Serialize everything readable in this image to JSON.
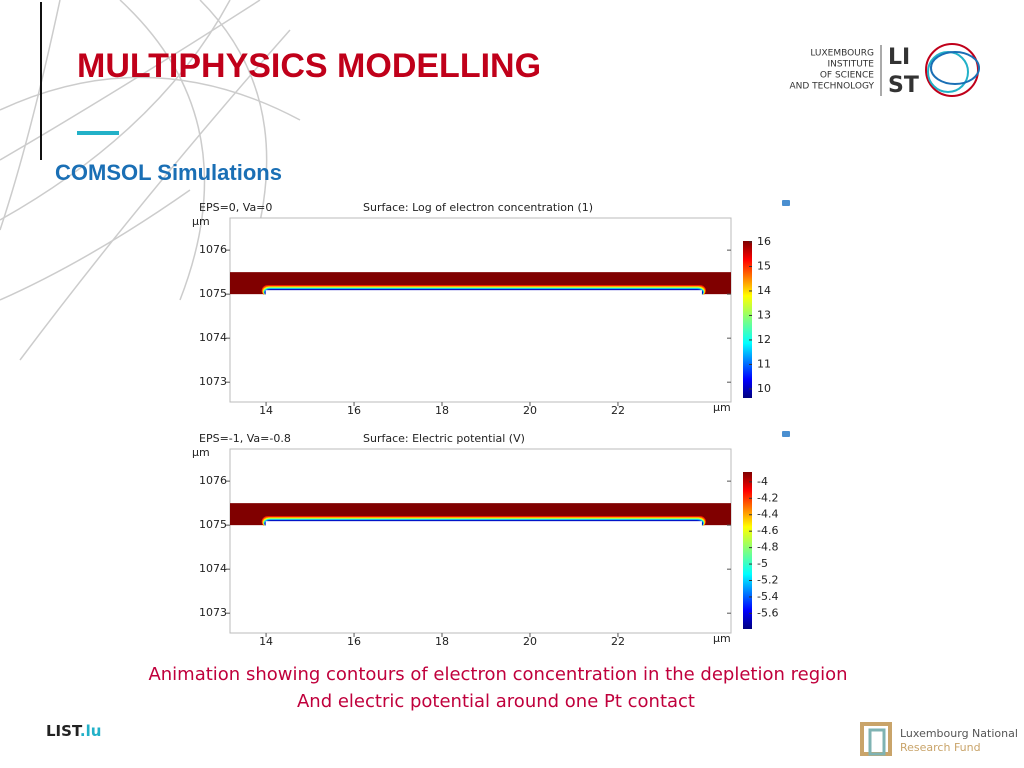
{
  "slide": {
    "title": "MULTIPHYSICS MODELLING",
    "subtitle": "COMSOL Simulations",
    "caption": [
      "Animation showing contours of electron concentration in the depletion region",
      "And electric potential around one Pt contact"
    ],
    "logo": [
      "LUXEMBOURG",
      "INSTITUTE",
      "OF SCIENCE",
      "AND TECHNOLOGY"
    ],
    "logo_mark": [
      "LI",
      "ST"
    ],
    "footer_left": [
      "LIST",
      ".lu"
    ],
    "footer_right": [
      "Luxembourg National",
      "Research Fund"
    ]
  },
  "chart_data": [
    {
      "type": "surface",
      "subtitle": "EPS=0, Va=0",
      "title": "Surface: Log of electron concentration (1)",
      "xlabel": "μm",
      "ylabel": "μm",
      "xlim": [
        13.18,
        24.57
      ],
      "ylim": [
        1072.55,
        1076.73
      ],
      "xticks": [
        14,
        16,
        18,
        20,
        22
      ],
      "yticks": [
        1073,
        1074,
        1075,
        1076
      ],
      "clim": [
        9.63,
        16.04
      ],
      "cticks": [
        10,
        11,
        12,
        13,
        14,
        15,
        16
      ],
      "layer_ylim": [
        1075,
        1075.5
      ],
      "contact_xlim": [
        13.9,
        24.0
      ]
    },
    {
      "type": "surface",
      "subtitle": "EPS=-1, Va=-0.8",
      "title": "Surface: Electric potential (V)",
      "xlabel": "μm",
      "ylabel": "μm",
      "xlim": [
        13.18,
        24.57
      ],
      "ylim": [
        1072.55,
        1076.73
      ],
      "xticks": [
        14,
        16,
        18,
        20,
        22
      ],
      "yticks": [
        1073,
        1074,
        1075,
        1076
      ],
      "clim": [
        -5.79,
        -3.88
      ],
      "cticks": [
        -4,
        -4.2,
        -4.4,
        -4.6,
        -4.8,
        -5,
        -5.2,
        -5.4,
        -5.6
      ],
      "layer_ylim": [
        1075,
        1075.5
      ],
      "contact_xlim": [
        13.9,
        24.0
      ]
    }
  ]
}
